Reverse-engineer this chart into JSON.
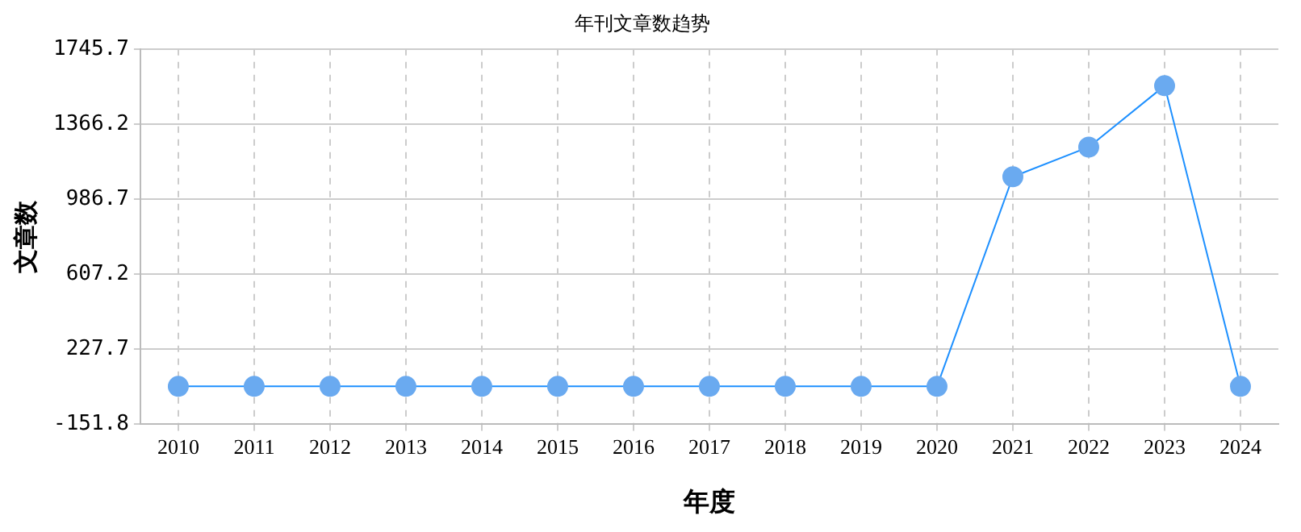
{
  "chart_data": {
    "type": "line",
    "title": "年刊文章数趋势",
    "xlabel": "年度",
    "ylabel": "文章数",
    "categories": [
      "2010",
      "2011",
      "2012",
      "2013",
      "2014",
      "2015",
      "2016",
      "2017",
      "2018",
      "2019",
      "2020",
      "2021",
      "2022",
      "2023",
      "2024"
    ],
    "series": [
      {
        "color": "#1e90ff",
        "values": [
          40,
          40,
          40,
          40,
          40,
          40,
          40,
          40,
          40,
          40,
          40,
          1100,
          1250,
          1560,
          40
        ]
      }
    ],
    "ylim": [
      -151.8,
      1745.7
    ],
    "yticks": [
      -151.8,
      227.7,
      607.2,
      986.7,
      1366.2,
      1745.7
    ],
    "grid": true,
    "legend": false,
    "marker": "circle",
    "line_style": "solid"
  }
}
